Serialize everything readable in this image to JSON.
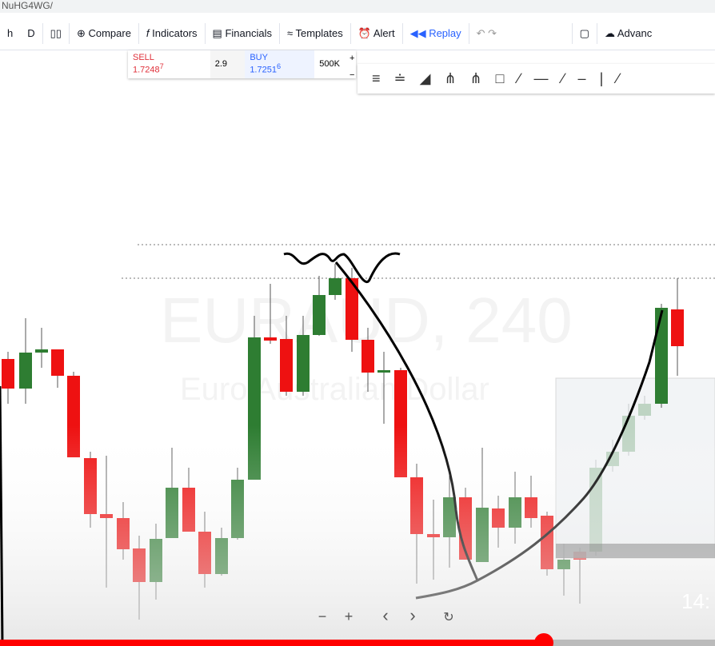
{
  "browser": {
    "url": "NuHG4WG/"
  },
  "toolbar": {
    "interval_prefix": "h",
    "interval": "D",
    "compare": "Compare",
    "indicators": "Indicators",
    "financials": "Financials",
    "templates": "Templates",
    "alert": "Alert",
    "replay": "Replay",
    "advanced": "Advanc"
  },
  "trade_widget": {
    "sell_label": "SELL",
    "sell_price": "1.7248",
    "sell_price_sup": "7",
    "spread": "2.9",
    "buy_label": "BUY",
    "buy_price": "1.7251",
    "buy_price_sup": "6",
    "quantity": "500K",
    "plus": "+",
    "minus": "−"
  },
  "watermark": {
    "symbol": "EURAUD, 240",
    "description": "Euro Australian Dollar"
  },
  "chart_controls": {
    "zoom_out": "−",
    "zoom_in": "+",
    "back": "‹",
    "forward": "›"
  },
  "video": {
    "timestamp": "14:"
  }
}
